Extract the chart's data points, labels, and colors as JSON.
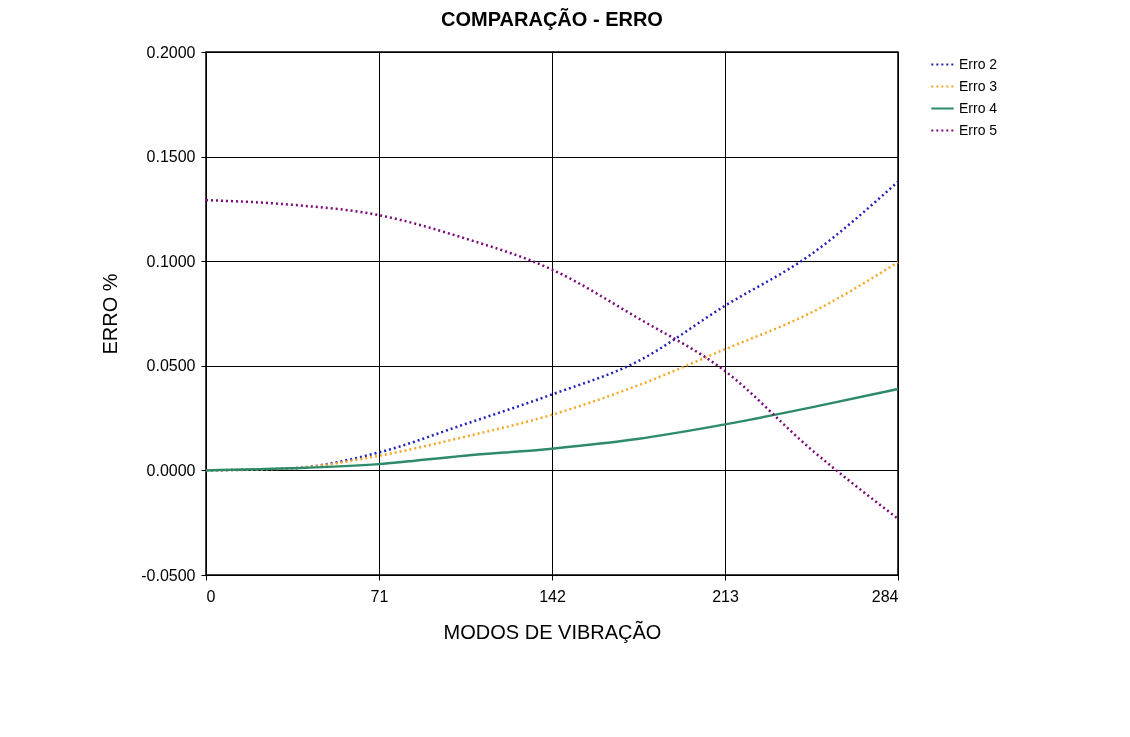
{
  "chart_data": {
    "type": "line",
    "title": "COMPARAÇÃO - ERRO",
    "xlabel": "MODOS DE VIBRAÇÃO",
    "ylabel": "ERRO %",
    "x": [
      0,
      35,
      71,
      106,
      142,
      177,
      213,
      248,
      284
    ],
    "series": [
      {
        "name": "Erro 2",
        "color": "#2222bb",
        "line_style": "dotted",
        "values": [
          0,
          0.001,
          0.0086,
          0.022,
          0.0363,
          0.052,
          0.0787,
          0.103,
          0.138
        ]
      },
      {
        "name": "Erro 3",
        "color": "#f5a623",
        "line_style": "dotted",
        "values": [
          0,
          0.001,
          0.007,
          0.016,
          0.0266,
          0.0405,
          0.0579,
          0.0752,
          0.0995
        ]
      },
      {
        "name": "Erro 4",
        "color": "#2e8b6a",
        "line_style": "solid",
        "values": [
          0,
          0.001,
          0.003,
          0.007,
          0.0104,
          0.015,
          0.022,
          0.03,
          0.0389
        ]
      },
      {
        "name": "Erro 5",
        "color": "#7a0a7a",
        "line_style": "dotted",
        "values": [
          0.1292,
          0.127,
          0.122,
          0.111,
          0.096,
          0.073,
          0.0475,
          0.0104,
          -0.0231
        ]
      }
    ],
    "xlim": [
      0,
      284
    ],
    "xticks": [
      0,
      71,
      142,
      213,
      284
    ],
    "ylim": [
      -0.05,
      0.2
    ],
    "yticks": [
      {
        "value": -0.05,
        "label": "-0.0500"
      },
      {
        "value": 0,
        "label": "0.0000"
      },
      {
        "value": 0.05,
        "label": "0.0500"
      },
      {
        "value": 0.1,
        "label": "0.1000"
      },
      {
        "value": 0.15,
        "label": "0.1500"
      },
      {
        "value": 0.2,
        "label": "0.2000"
      }
    ],
    "grid": true,
    "legend": "right"
  }
}
